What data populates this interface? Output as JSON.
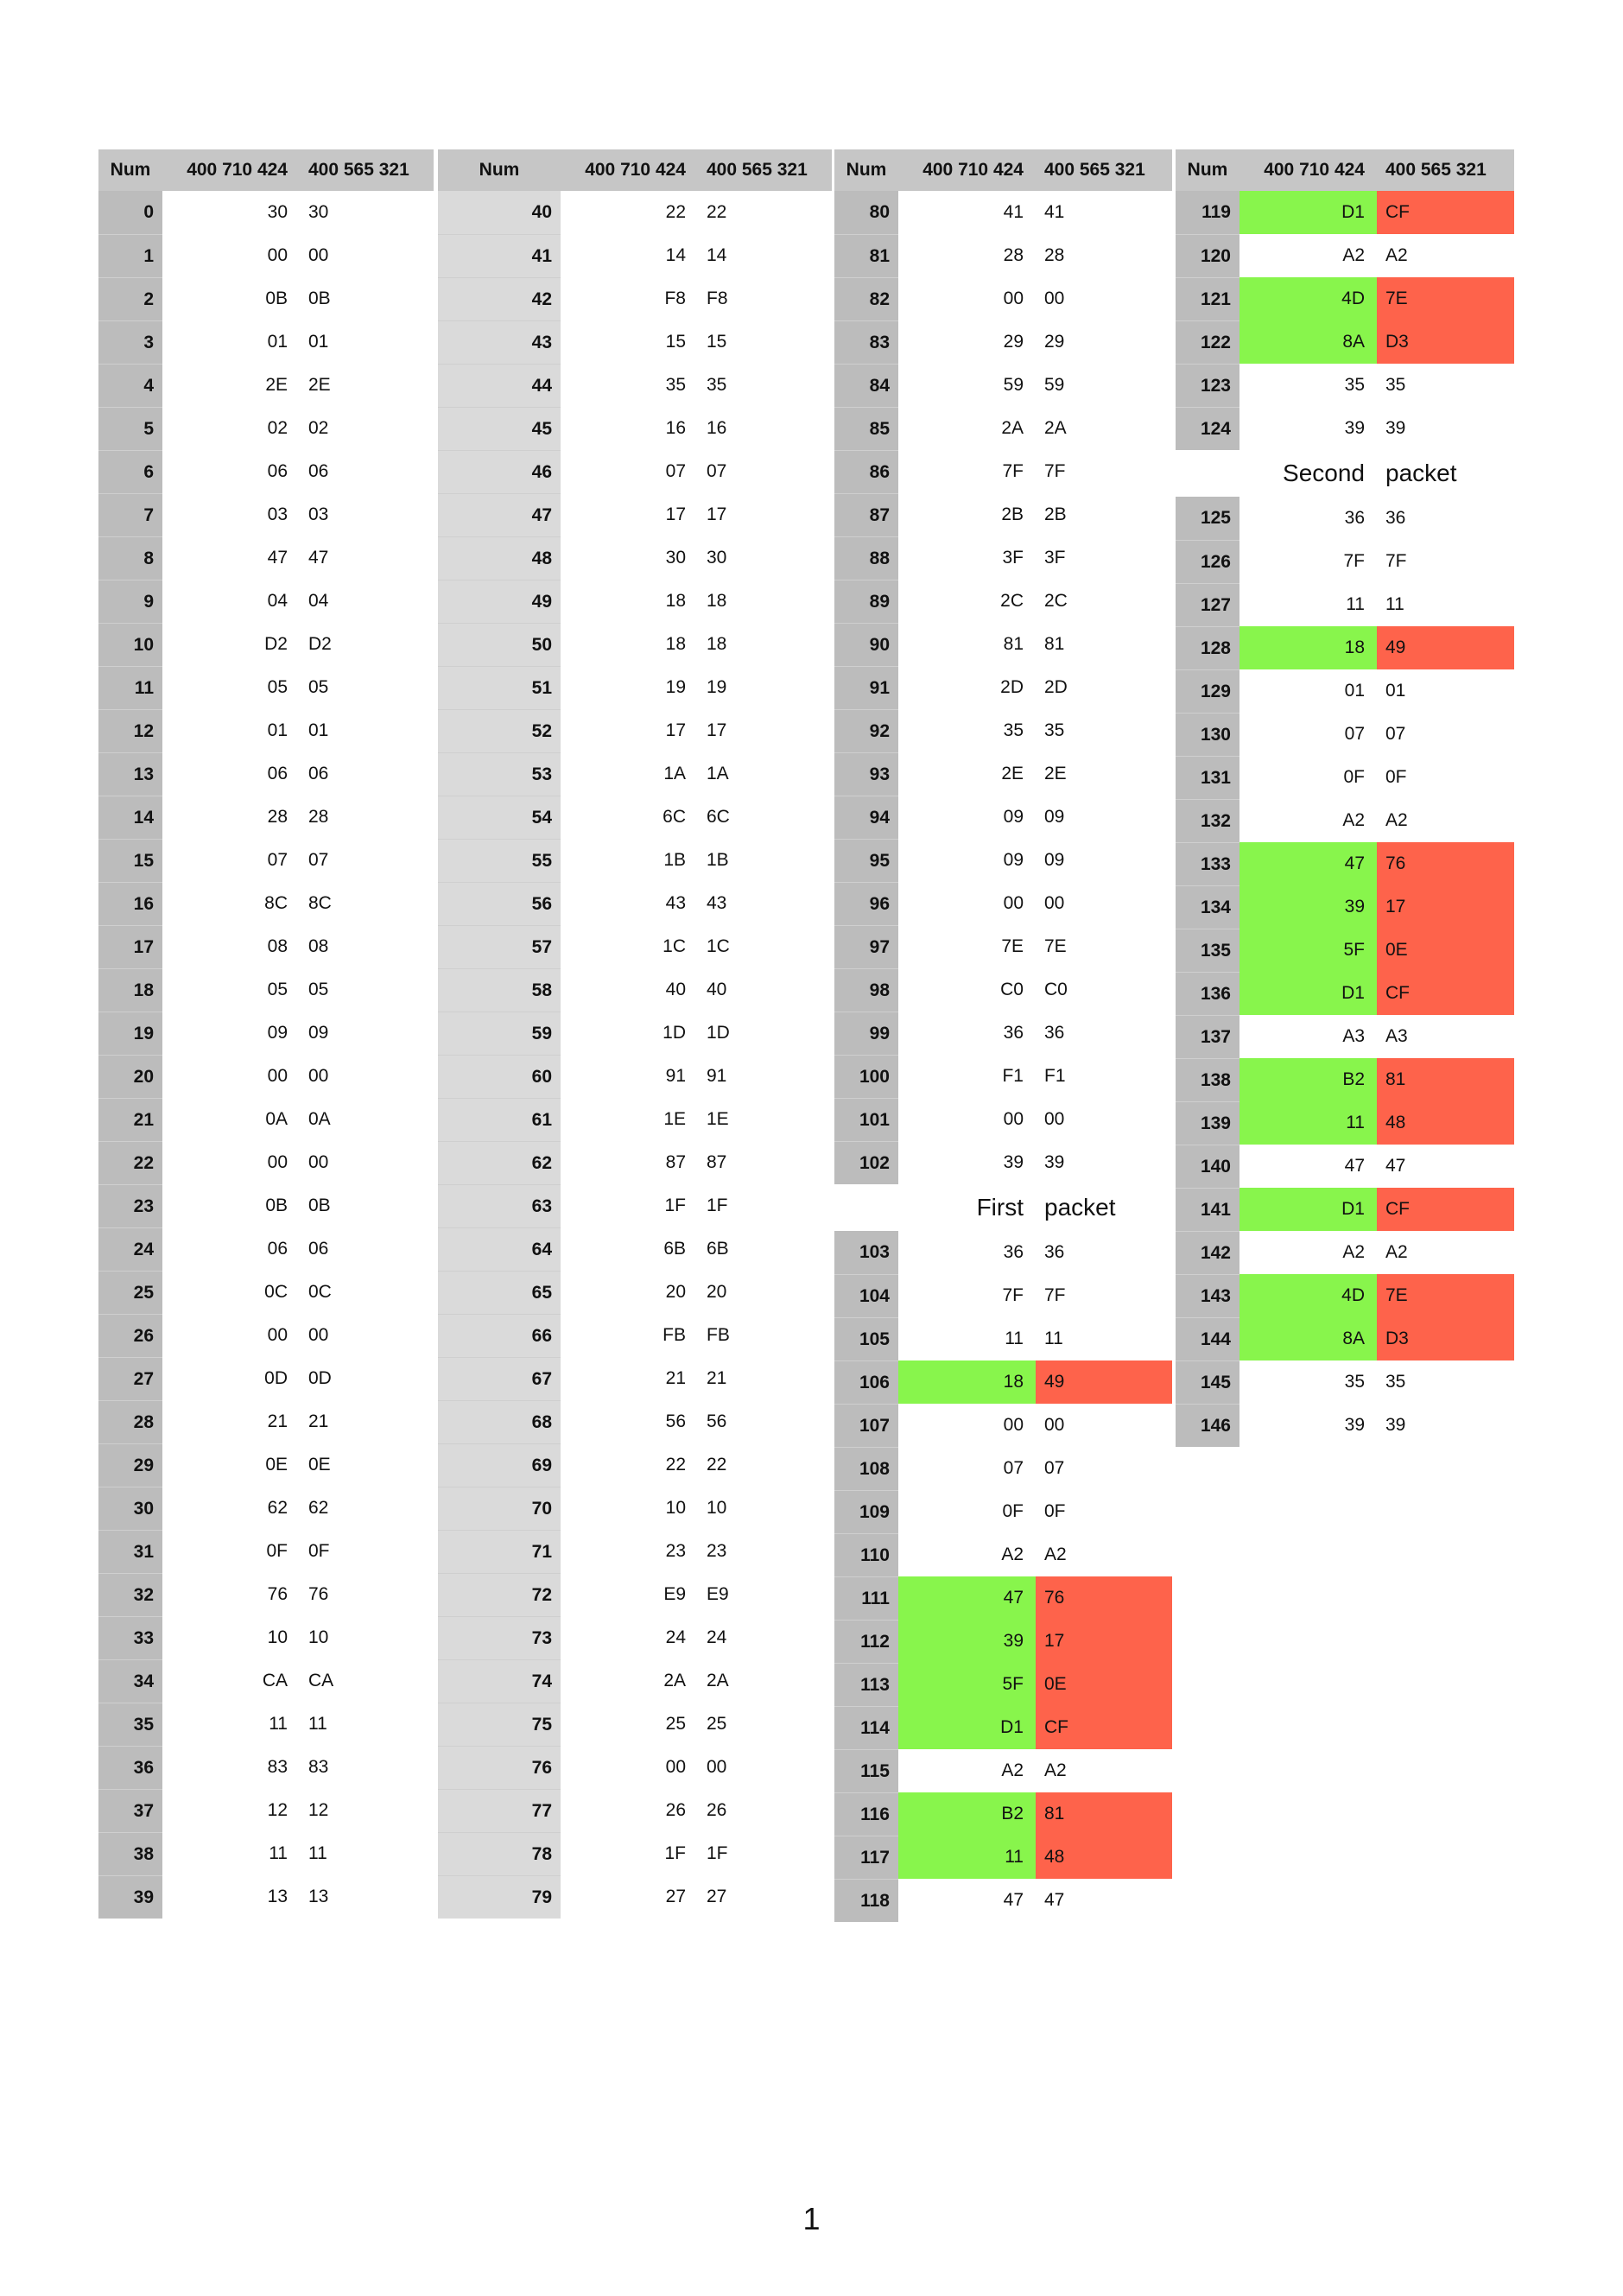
{
  "headers": [
    "Num",
    "400 710 424",
    "400 565 321"
  ],
  "columns": [
    {
      "rows": [
        [
          "0",
          "30",
          "30"
        ],
        [
          "1",
          "00",
          "00"
        ],
        [
          "2",
          "0B",
          "0B"
        ],
        [
          "3",
          "01",
          "01"
        ],
        [
          "4",
          "2E",
          "2E"
        ],
        [
          "5",
          "02",
          "02"
        ],
        [
          "6",
          "06",
          "06"
        ],
        [
          "7",
          "03",
          "03"
        ],
        [
          "8",
          "47",
          "47"
        ],
        [
          "9",
          "04",
          "04"
        ],
        [
          "10",
          "D2",
          "D2"
        ],
        [
          "11",
          "05",
          "05"
        ],
        [
          "12",
          "01",
          "01"
        ],
        [
          "13",
          "06",
          "06"
        ],
        [
          "14",
          "28",
          "28"
        ],
        [
          "15",
          "07",
          "07"
        ],
        [
          "16",
          "8C",
          "8C"
        ],
        [
          "17",
          "08",
          "08"
        ],
        [
          "18",
          "05",
          "05"
        ],
        [
          "19",
          "09",
          "09"
        ],
        [
          "20",
          "00",
          "00"
        ],
        [
          "21",
          "0A",
          "0A"
        ],
        [
          "22",
          "00",
          "00"
        ],
        [
          "23",
          "0B",
          "0B"
        ],
        [
          "24",
          "06",
          "06"
        ],
        [
          "25",
          "0C",
          "0C"
        ],
        [
          "26",
          "00",
          "00"
        ],
        [
          "27",
          "0D",
          "0D"
        ],
        [
          "28",
          "21",
          "21"
        ],
        [
          "29",
          "0E",
          "0E"
        ],
        [
          "30",
          "62",
          "62"
        ],
        [
          "31",
          "0F",
          "0F"
        ],
        [
          "32",
          "76",
          "76"
        ],
        [
          "33",
          "10",
          "10"
        ],
        [
          "34",
          "CA",
          "CA"
        ],
        [
          "35",
          "11",
          "11"
        ],
        [
          "36",
          "83",
          "83"
        ],
        [
          "37",
          "12",
          "12"
        ],
        [
          "38",
          "11",
          "11"
        ],
        [
          "39",
          "13",
          "13"
        ]
      ]
    },
    {
      "rows": [
        [
          "40",
          "22",
          "22"
        ],
        [
          "41",
          "14",
          "14"
        ],
        [
          "42",
          "F8",
          "F8"
        ],
        [
          "43",
          "15",
          "15"
        ],
        [
          "44",
          "35",
          "35"
        ],
        [
          "45",
          "16",
          "16"
        ],
        [
          "46",
          "07",
          "07"
        ],
        [
          "47",
          "17",
          "17"
        ],
        [
          "48",
          "30",
          "30"
        ],
        [
          "49",
          "18",
          "18"
        ],
        [
          "50",
          "18",
          "18"
        ],
        [
          "51",
          "19",
          "19"
        ],
        [
          "52",
          "17",
          "17"
        ],
        [
          "53",
          "1A",
          "1A"
        ],
        [
          "54",
          "6C",
          "6C"
        ],
        [
          "55",
          "1B",
          "1B"
        ],
        [
          "56",
          "43",
          "43"
        ],
        [
          "57",
          "1C",
          "1C"
        ],
        [
          "58",
          "40",
          "40"
        ],
        [
          "59",
          "1D",
          "1D"
        ],
        [
          "60",
          "91",
          "91"
        ],
        [
          "61",
          "1E",
          "1E"
        ],
        [
          "62",
          "87",
          "87"
        ],
        [
          "63",
          "1F",
          "1F"
        ],
        [
          "64",
          "6B",
          "6B"
        ],
        [
          "65",
          "20",
          "20"
        ],
        [
          "66",
          "FB",
          "FB"
        ],
        [
          "67",
          "21",
          "21"
        ],
        [
          "68",
          "56",
          "56"
        ],
        [
          "69",
          "22",
          "22"
        ],
        [
          "70",
          "10",
          "10"
        ],
        [
          "71",
          "23",
          "23"
        ],
        [
          "72",
          "E9",
          "E9"
        ],
        [
          "73",
          "24",
          "24"
        ],
        [
          "74",
          "2A",
          "2A"
        ],
        [
          "75",
          "25",
          "25"
        ],
        [
          "76",
          "00",
          "00"
        ],
        [
          "77",
          "26",
          "26"
        ],
        [
          "78",
          "1F",
          "1F"
        ],
        [
          "79",
          "27",
          "27"
        ]
      ]
    },
    {
      "rows": [
        [
          "80",
          "41",
          "41"
        ],
        [
          "81",
          "28",
          "28"
        ],
        [
          "82",
          "00",
          "00"
        ],
        [
          "83",
          "29",
          "29"
        ],
        [
          "84",
          "59",
          "59"
        ],
        [
          "85",
          "2A",
          "2A"
        ],
        [
          "86",
          "7F",
          "7F"
        ],
        [
          "87",
          "2B",
          "2B"
        ],
        [
          "88",
          "3F",
          "3F"
        ],
        [
          "89",
          "2C",
          "2C"
        ],
        [
          "90",
          "81",
          "81"
        ],
        [
          "91",
          "2D",
          "2D"
        ],
        [
          "92",
          "35",
          "35"
        ],
        [
          "93",
          "2E",
          "2E"
        ],
        [
          "94",
          "09",
          "09"
        ],
        [
          "95",
          "09",
          "09"
        ],
        [
          "96",
          "00",
          "00"
        ],
        [
          "97",
          "7E",
          "7E"
        ],
        [
          "98",
          "C0",
          "C0"
        ],
        [
          "99",
          "36",
          "36"
        ],
        [
          "100",
          "F1",
          "F1"
        ],
        [
          "101",
          "00",
          "00"
        ],
        [
          "102",
          "39",
          "39"
        ],
        [
          "",
          "First",
          "packet"
        ],
        [
          "103",
          "36",
          "36"
        ],
        [
          "104",
          "7F",
          "7F"
        ],
        [
          "105",
          "11",
          "11"
        ],
        [
          "106",
          "18",
          "49"
        ],
        [
          "107",
          "00",
          "00"
        ],
        [
          "108",
          "07",
          "07"
        ],
        [
          "109",
          "0F",
          "0F"
        ],
        [
          "110",
          "A2",
          "A2"
        ],
        [
          "111",
          "47",
          "76"
        ],
        [
          "112",
          "39",
          "17"
        ],
        [
          "113",
          "5F",
          "0E"
        ],
        [
          "114",
          "D1",
          "CF"
        ],
        [
          "115",
          "A2",
          "A2"
        ],
        [
          "116",
          "B2",
          "81"
        ],
        [
          "117",
          "11",
          "48"
        ],
        [
          "118",
          "47",
          "47"
        ]
      ]
    },
    {
      "rows": [
        [
          "119",
          "D1",
          "CF"
        ],
        [
          "120",
          "A2",
          "A2"
        ],
        [
          "121",
          "4D",
          "7E"
        ],
        [
          "122",
          "8A",
          "D3"
        ],
        [
          "123",
          "35",
          "35"
        ],
        [
          "124",
          "39",
          "39"
        ],
        [
          "",
          "Second",
          "packet"
        ],
        [
          "125",
          "36",
          "36"
        ],
        [
          "126",
          "7F",
          "7F"
        ],
        [
          "127",
          "11",
          "11"
        ],
        [
          "128",
          "18",
          "49"
        ],
        [
          "129",
          "01",
          "01"
        ],
        [
          "130",
          "07",
          "07"
        ],
        [
          "131",
          "0F",
          "0F"
        ],
        [
          "132",
          "A2",
          "A2"
        ],
        [
          "133",
          "47",
          "76"
        ],
        [
          "134",
          "39",
          "17"
        ],
        [
          "135",
          "5F",
          "0E"
        ],
        [
          "136",
          "D1",
          "CF"
        ],
        [
          "137",
          "A3",
          "A3"
        ],
        [
          "138",
          "B2",
          "81"
        ],
        [
          "139",
          "11",
          "48"
        ],
        [
          "140",
          "47",
          "47"
        ],
        [
          "141",
          "D1",
          "CF"
        ],
        [
          "142",
          "A2",
          "A2"
        ],
        [
          "143",
          "4D",
          "7E"
        ],
        [
          "144",
          "8A",
          "D3"
        ],
        [
          "145",
          "35",
          "35"
        ],
        [
          "146",
          "39",
          "39"
        ]
      ]
    }
  ],
  "colors": {
    "match": "#88f54c",
    "mismatch": "#fe634b",
    "num_dark": "#bcbcbc",
    "num_light": "#dadada",
    "header": "#c6c6c6"
  },
  "page_number": "1"
}
